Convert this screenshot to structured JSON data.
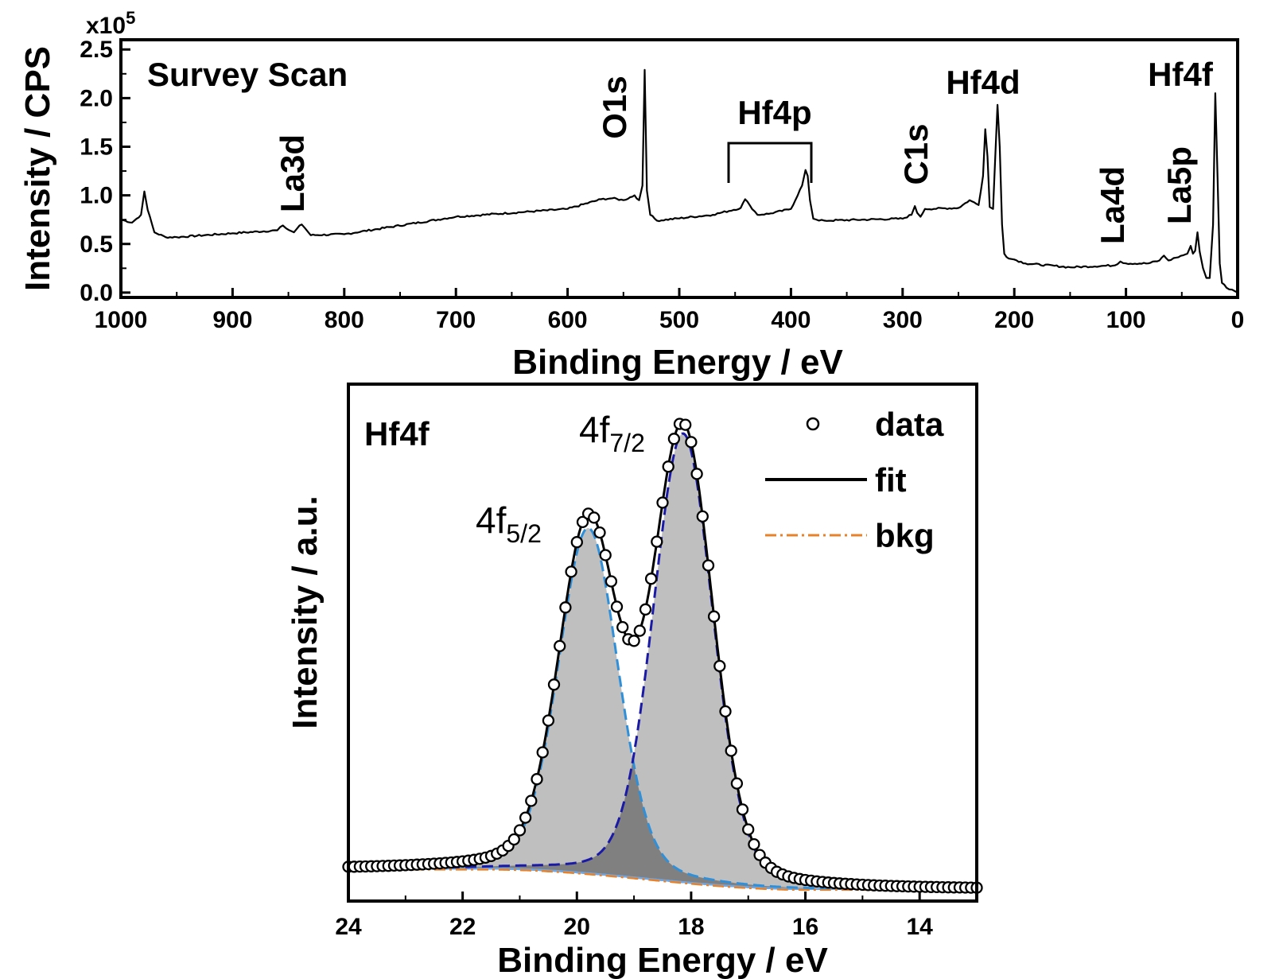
{
  "chart_data": [
    {
      "type": "line",
      "title": "Survey Scan",
      "xlabel": "Binding Energy / eV",
      "ylabel": "Intensity / CPS",
      "y_multiplier": "x10",
      "y_multiplier_exp": "5",
      "xlim": [
        1000,
        0
      ],
      "ylim": [
        -0.05,
        2.6
      ],
      "x_ticks": [
        1000,
        900,
        800,
        700,
        600,
        500,
        400,
        300,
        200,
        100,
        0
      ],
      "y_ticks": [
        "0.0",
        "0.5",
        "1.0",
        "1.5",
        "2.0",
        "2.5"
      ],
      "y_tick_values": [
        0,
        0.5,
        1.0,
        1.5,
        2.0,
        2.5
      ],
      "series": [
        {
          "x": [
            1000,
            990,
            982,
            979,
            976,
            970,
            960,
            950,
            900,
            860,
            855,
            852,
            845,
            840,
            838,
            835,
            830,
            800,
            700,
            600,
            570,
            560,
            550,
            540,
            536,
            533,
            531,
            529,
            526,
            520,
            470,
            445,
            441,
            437,
            430,
            420,
            400,
            390,
            387,
            385,
            383,
            380,
            375,
            370,
            300,
            292,
            289,
            287,
            284,
            280,
            250,
            240,
            232,
            228,
            226,
            224,
            222,
            219,
            217,
            215,
            213,
            211,
            209,
            205,
            200,
            190,
            150,
            110,
            105,
            100,
            80,
            70,
            66,
            62,
            55,
            45,
            42,
            40,
            38,
            36,
            34,
            31,
            28,
            25,
            22,
            20,
            18,
            16,
            14,
            10,
            5,
            0
          ],
          "y": [
            0.75,
            0.72,
            0.8,
            1.04,
            0.85,
            0.62,
            0.57,
            0.57,
            0.61,
            0.64,
            0.69,
            0.66,
            0.62,
            0.69,
            0.7,
            0.66,
            0.59,
            0.6,
            0.78,
            0.86,
            0.96,
            0.97,
            0.95,
            1.0,
            0.95,
            1.1,
            2.29,
            1.05,
            0.8,
            0.74,
            0.8,
            0.87,
            0.96,
            0.9,
            0.8,
            0.81,
            0.86,
            1.1,
            1.26,
            1.2,
            0.95,
            0.76,
            0.74,
            0.74,
            0.76,
            0.8,
            0.89,
            0.82,
            0.78,
            0.86,
            0.87,
            0.95,
            0.9,
            1.2,
            1.68,
            1.4,
            0.88,
            0.86,
            1.4,
            1.93,
            1.5,
            0.7,
            0.4,
            0.35,
            0.34,
            0.3,
            0.26,
            0.28,
            0.32,
            0.3,
            0.3,
            0.33,
            0.38,
            0.33,
            0.36,
            0.4,
            0.48,
            0.4,
            0.43,
            0.62,
            0.42,
            0.25,
            0.15,
            0.15,
            0.7,
            2.05,
            1.2,
            0.3,
            0.1,
            0.05,
            0.03,
            0.0
          ]
        }
      ],
      "annotations": [
        {
          "text": "La3d",
          "x": 845,
          "rotated": true
        },
        {
          "text": "O1s",
          "x": 545,
          "rotated": true
        },
        {
          "text": "Hf4p",
          "x": 415,
          "rotated": false
        },
        {
          "text": "C1s",
          "x": 290,
          "rotated": true
        },
        {
          "text": "Hf4d",
          "x": 218,
          "rotated": false
        },
        {
          "text": "La4d",
          "x": 105,
          "rotated": true
        },
        {
          "text": "La5p",
          "x": 45,
          "rotated": true
        },
        {
          "text": "Hf4f",
          "x": 20,
          "rotated": false
        }
      ]
    },
    {
      "type": "scatter",
      "title": "Hf4f",
      "xlabel": "Binding Energy / eV",
      "ylabel": "Intensity / a.u.",
      "xlim": [
        24,
        13
      ],
      "ylim": [
        -0.07,
        1.08
      ],
      "x_ticks": [
        24,
        22,
        20,
        18,
        16,
        14
      ],
      "legend": {
        "position": "top-right",
        "entries": [
          "data",
          "fit",
          "bkg"
        ]
      },
      "peak_labels": [
        {
          "text": "4f",
          "sub": "7/2",
          "center_ev": 18.14
        },
        {
          "text": "4f",
          "sub": "5/2",
          "center_ev": 19.8
        }
      ],
      "components": [
        {
          "name": "4f7/2",
          "center": 18.14,
          "amplitude": 1.0,
          "sigma": 0.52
        },
        {
          "name": "4f5/2",
          "center": 19.8,
          "amplitude": 0.77,
          "sigma": 0.52
        }
      ],
      "background": {
        "high_ev": 21.5,
        "low_ev": 16.0,
        "high_level": 0.0,
        "low_level": -0.045
      },
      "colors": {
        "fill": "#bfbfbf",
        "overlap": "#808080",
        "comp_7_2": "#1a1aa6",
        "comp_5_2": "#2f8fd8",
        "bkg": "#e8822a",
        "fit": "#000000",
        "baseline": "#6fa8e6"
      }
    }
  ]
}
